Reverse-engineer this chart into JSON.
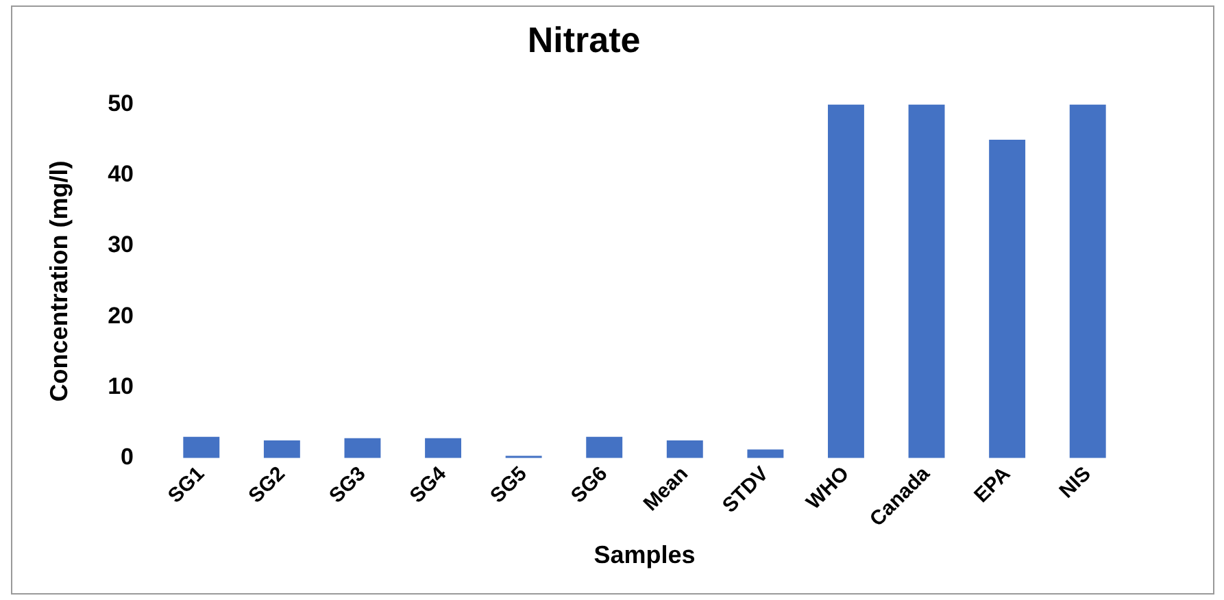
{
  "chart_data": {
    "type": "bar",
    "title": "Nitrate",
    "xlabel": "Samples",
    "ylabel": "Concentration (mg/l)",
    "categories": [
      "SG1",
      "SG2",
      "SG3",
      "SG4",
      "SG5",
      "SG6",
      "Mean",
      "STDV",
      "WHO",
      "Canada",
      "EPA",
      "NIS"
    ],
    "values": [
      3,
      2.5,
      2.8,
      2.8,
      0.3,
      3,
      2.5,
      1.2,
      50,
      50,
      45,
      50
    ],
    "color": "#4472c4",
    "ylim": [
      0,
      50
    ],
    "yticks": [
      0,
      10,
      20,
      30,
      40,
      50
    ],
    "grid": false,
    "legend": false
  }
}
